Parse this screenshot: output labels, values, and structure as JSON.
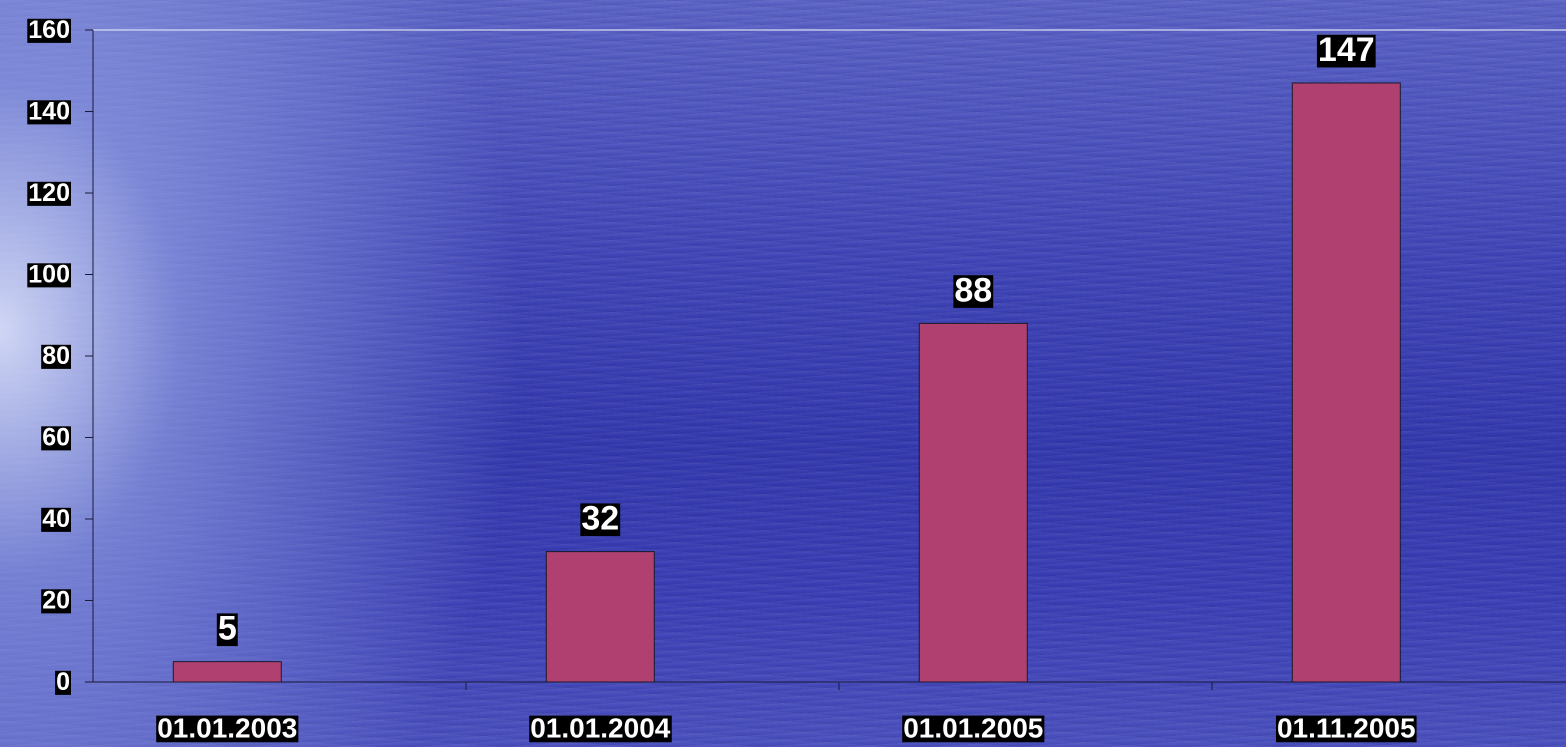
{
  "chart_data": {
    "type": "bar",
    "categories": [
      "01.01.2003",
      "01.01.2004",
      "01.01.2005",
      "01.11.2005"
    ],
    "values": [
      5,
      32,
      88,
      147
    ],
    "data_labels": [
      "5",
      "32",
      "88",
      "147"
    ],
    "yticks": [
      "0",
      "20",
      "40",
      "60",
      "80",
      "100",
      "120",
      "140",
      "160"
    ],
    "ylim": [
      0,
      160
    ],
    "title": "",
    "xlabel": "",
    "ylabel": "",
    "grid": "top line only",
    "legend": "none",
    "colors": {
      "bar": "#b04070",
      "axis": "#1a1a3a",
      "label_background": "#000000",
      "label_text": "#ffffff"
    }
  }
}
